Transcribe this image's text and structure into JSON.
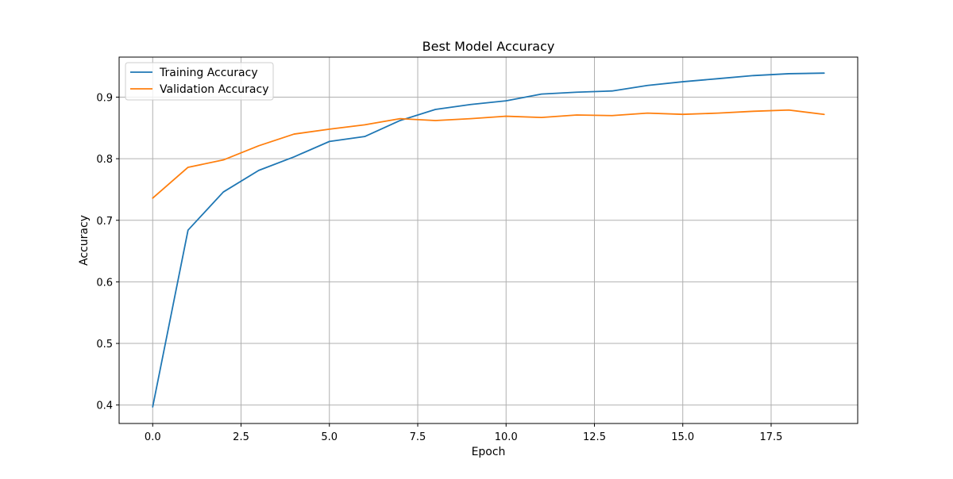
{
  "chart_data": {
    "type": "line",
    "title": "Best Model Accuracy",
    "xlabel": "Epoch",
    "ylabel": "Accuracy",
    "xlim": [
      -0.95,
      19.95
    ],
    "ylim": [
      0.37,
      0.965
    ],
    "xticks": [
      0.0,
      2.5,
      5.0,
      7.5,
      10.0,
      12.5,
      15.0,
      17.5
    ],
    "xtick_labels": [
      "0.0",
      "2.5",
      "5.0",
      "7.5",
      "10.0",
      "12.5",
      "15.0",
      "17.5"
    ],
    "yticks": [
      0.4,
      0.5,
      0.6,
      0.7,
      0.8,
      0.9
    ],
    "ytick_labels": [
      "0.4",
      "0.5",
      "0.6",
      "0.7",
      "0.8",
      "0.9"
    ],
    "grid": true,
    "legend_position": "top-left",
    "x": [
      0,
      1,
      2,
      3,
      4,
      5,
      6,
      7,
      8,
      9,
      10,
      11,
      12,
      13,
      14,
      15,
      16,
      17,
      18,
      19
    ],
    "series": [
      {
        "name": "Training Accuracy",
        "color": "#1f77b4",
        "values": [
          0.397,
          0.684,
          0.746,
          0.781,
          0.803,
          0.828,
          0.836,
          0.862,
          0.88,
          0.888,
          0.894,
          0.905,
          0.908,
          0.91,
          0.919,
          0.925,
          0.93,
          0.935,
          0.938,
          0.939
        ]
      },
      {
        "name": "Validation Accuracy",
        "color": "#ff7f0e",
        "values": [
          0.736,
          0.786,
          0.798,
          0.821,
          0.84,
          0.848,
          0.855,
          0.865,
          0.862,
          0.865,
          0.869,
          0.867,
          0.871,
          0.87,
          0.874,
          0.872,
          0.874,
          0.877,
          0.879,
          0.872
        ]
      }
    ]
  }
}
